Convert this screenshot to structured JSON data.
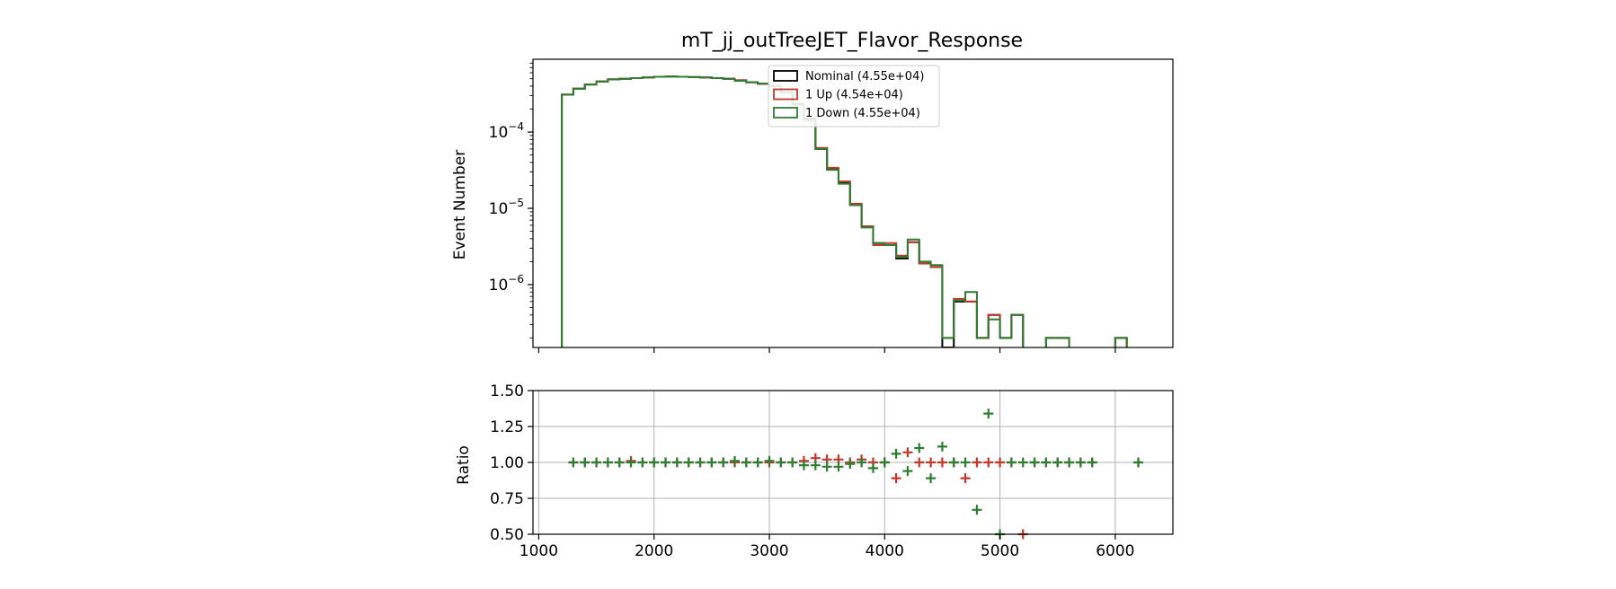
{
  "chart_data": [
    {
      "type": "line",
      "step": true,
      "title": "mT_jj_outTreeJET_Flavor_Response",
      "xlabel": "",
      "ylabel": "Event Number",
      "yscale": "log",
      "xlim": [
        950,
        6500
      ],
      "ylim": [
        1.5e-07,
        0.0009
      ],
      "yticks": [
        1e-06,
        1e-05,
        0.0001
      ],
      "ytick_labels": [
        [
          "10",
          "−6"
        ],
        [
          "10",
          "−5"
        ],
        [
          "10",
          "−4"
        ]
      ],
      "xticks": [
        1000,
        2000,
        3000,
        4000,
        5000,
        6000
      ],
      "show_xtick_labels": false,
      "grid": false,
      "legend": "top-center",
      "bin_edges": [
        1200,
        1300,
        1400,
        1500,
        1600,
        1700,
        1800,
        1900,
        2000,
        2100,
        2200,
        2300,
        2400,
        2500,
        2600,
        2700,
        2800,
        2900,
        3000,
        3100,
        3200,
        3300,
        3400,
        3500,
        3600,
        3700,
        3800,
        3900,
        4000,
        4100,
        4200,
        4300,
        4400,
        4500,
        4600,
        4700,
        4800,
        4900,
        5000,
        5100,
        5200,
        5300,
        5400,
        5500,
        5600,
        5700,
        5800,
        5900,
        6000,
        6100,
        6200,
        6300
      ],
      "series": [
        {
          "name": "Nominal (4.55e+04)",
          "color": "#000000",
          "values": [
            0.00031,
            0.00037,
            0.00042,
            0.00046,
            0.00049,
            0.0005,
            0.00051,
            0.00052,
            0.00053,
            0.000535,
            0.00053,
            0.000525,
            0.00052,
            0.00051,
            0.0005,
            0.00047,
            0.00045,
            0.00043,
            0.0004,
            0.00033,
            0.00023,
            0.000145,
            6e-05,
            3.3e-05,
            2.2e-05,
            1.1e-05,
            5.8e-06,
            3.5e-06,
            3.3e-06,
            2.2e-06,
            3.6e-06,
            1.9e-06,
            1.7e-06,
            1.5e-07,
            6e-07,
            6e-07,
            2e-07,
            4e-07,
            2e-07,
            4e-07,
            0,
            0,
            2e-07,
            2e-07,
            0,
            0,
            0,
            0,
            2e-07,
            0,
            0
          ]
        },
        {
          "name": "1 Up (4.54e+04)",
          "color": "#c0392b",
          "values": [
            0.00031,
            0.00037,
            0.00042,
            0.00046,
            0.00049,
            0.0005,
            0.00051,
            0.00052,
            0.00053,
            0.000535,
            0.00053,
            0.000525,
            0.00052,
            0.00051,
            0.0005,
            0.00048,
            0.00045,
            0.00043,
            0.0004,
            0.00033,
            0.000235,
            0.00015,
            6.2e-05,
            3.4e-05,
            2.25e-05,
            1.15e-05,
            5.8e-06,
            3.3e-06,
            3.5e-06,
            2.4e-06,
            3.6e-06,
            1.9e-06,
            1.7e-06,
            2e-07,
            6.5e-07,
            6e-07,
            2e-07,
            4e-07,
            2e-07,
            4e-07,
            0,
            0,
            2e-07,
            2e-07,
            0,
            0,
            0,
            0,
            2e-07,
            0,
            0
          ]
        },
        {
          "name": "1 Down (4.55e+04)",
          "color": "#2e7d32",
          "values": [
            0.00031,
            0.00037,
            0.00042,
            0.00046,
            0.00049,
            0.0005,
            0.00051,
            0.00052,
            0.00053,
            0.000535,
            0.00053,
            0.000525,
            0.00052,
            0.00051,
            0.0005,
            0.00047,
            0.00045,
            0.00043,
            0.0004,
            0.00033,
            0.00023,
            0.000145,
            6e-05,
            3.2e-05,
            2.1e-05,
            1.1e-05,
            5.6e-06,
            3.5e-06,
            3.3e-06,
            2.3e-06,
            3.9e-06,
            2e-06,
            1.8e-06,
            2e-07,
            6.2e-07,
            8e-07,
            2e-07,
            3.5e-07,
            2e-07,
            4e-07,
            0,
            0,
            2e-07,
            2e-07,
            0,
            0,
            0,
            0,
            2e-07,
            0,
            0
          ]
        }
      ]
    },
    {
      "type": "scatter",
      "title": "",
      "xlabel": "",
      "ylabel": "Ratio",
      "xlim": [
        950,
        6500
      ],
      "ylim": [
        0.5,
        1.5
      ],
      "yticks": [
        0.5,
        0.75,
        1.0,
        1.25,
        1.5
      ],
      "ytick_labels": [
        "0.50",
        "0.75",
        "1.00",
        "1.25",
        "1.50"
      ],
      "xticks": [
        1000,
        2000,
        3000,
        4000,
        5000,
        6000
      ],
      "xtick_labels": [
        "1000",
        "2000",
        "3000",
        "4000",
        "5000",
        "6000"
      ],
      "grid": true,
      "x": [
        1300,
        1400,
        1500,
        1600,
        1700,
        1800,
        1900,
        2000,
        2100,
        2200,
        2300,
        2400,
        2500,
        2600,
        2700,
        2800,
        2900,
        3000,
        3100,
        3200,
        3300,
        3400,
        3500,
        3600,
        3700,
        3800,
        3900,
        4000,
        4100,
        4200,
        4300,
        4400,
        4500,
        4600,
        4700,
        4800,
        4900,
        5000,
        5100,
        5200,
        5300,
        5400,
        5500,
        5600,
        5700,
        5800,
        6200
      ],
      "series": [
        {
          "name": "1 Up",
          "color": "#c0392b",
          "values": [
            1.0,
            1.0,
            1.0,
            1.0,
            1.0,
            1.01,
            1.0,
            1.0,
            1.0,
            1.0,
            1.0,
            1.0,
            1.0,
            1.0,
            1.0,
            1.0,
            1.0,
            1.0,
            1.0,
            1.0,
            1.01,
            1.03,
            1.02,
            1.02,
            1.0,
            1.02,
            1.0,
            1.0,
            0.89,
            1.07,
            1.0,
            1.0,
            1.0,
            1.0,
            0.89,
            1.0,
            1.0,
            1.0,
            1.0,
            0.5,
            1.0,
            1.0,
            1.0,
            1.0,
            1.0,
            1.0,
            1.0
          ]
        },
        {
          "name": "1 Down",
          "color": "#2e7d32",
          "values": [
            1.0,
            1.0,
            1.0,
            1.0,
            1.0,
            1.0,
            1.0,
            1.0,
            1.0,
            1.0,
            1.0,
            1.0,
            1.0,
            1.0,
            1.01,
            1.0,
            1.0,
            1.01,
            1.0,
            1.0,
            0.98,
            0.98,
            0.97,
            0.97,
            0.99,
            1.0,
            0.96,
            1.0,
            1.06,
            0.94,
            1.1,
            0.89,
            1.11,
            1.0,
            1.0,
            0.67,
            1.34,
            0.5,
            1.0,
            1.0,
            1.0,
            1.0,
            1.0,
            1.0,
            1.0,
            1.0,
            1.0
          ]
        }
      ]
    }
  ]
}
